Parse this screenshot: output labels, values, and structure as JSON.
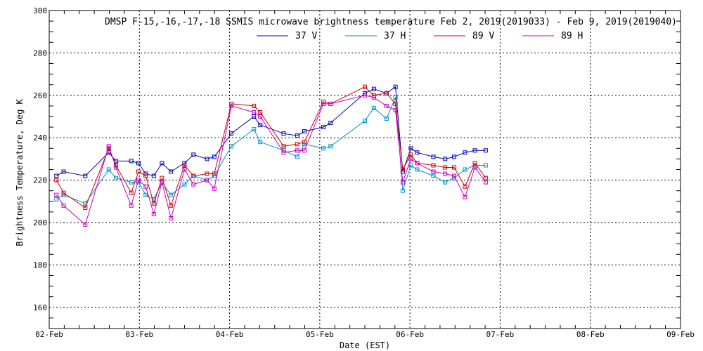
{
  "chart_data": {
    "type": "line",
    "title": "DMSP F-15,-16,-17,-18 SSMIS microwave brightness temperature Feb  2, 2019(2019033) - Feb  9, 2019(2019040)",
    "xlabel": "Date (EST)",
    "ylabel": "Brightness Temperature, Deg K",
    "xlim": [
      0,
      7
    ],
    "ylim": [
      150,
      300
    ],
    "x_ticks": [
      0,
      1,
      2,
      3,
      4,
      5,
      6,
      7
    ],
    "x_tick_labels": [
      "02-Feb",
      "03-Feb",
      "04-Feb",
      "05-Feb",
      "06-Feb",
      "07-Feb",
      "08-Feb",
      "09-Feb"
    ],
    "y_ticks": [
      160,
      180,
      200,
      220,
      240,
      260,
      280,
      300
    ],
    "grid": true,
    "legend": "top-center",
    "series": [
      {
        "name": "37 V",
        "color": "#0000b4",
        "x": [
          0.08,
          0.16,
          0.4,
          0.66,
          0.74,
          0.91,
          0.99,
          1.07,
          1.16,
          1.25,
          1.35,
          1.5,
          1.6,
          1.75,
          1.83,
          2.02,
          2.27,
          2.34,
          2.6,
          2.75,
          2.83,
          3.04,
          3.12,
          3.5,
          3.6,
          3.74,
          3.84,
          3.92,
          4.01,
          4.08,
          4.26,
          4.39,
          4.49,
          4.61,
          4.72,
          4.84
        ],
        "y": [
          222,
          224,
          222,
          233,
          229,
          229,
          228,
          223,
          222,
          228,
          224,
          228,
          232,
          230,
          231,
          242,
          250,
          246,
          242,
          241,
          243,
          245,
          247,
          261,
          263,
          261,
          264,
          224,
          235,
          233,
          231,
          230,
          231,
          233,
          234,
          234
        ]
      },
      {
        "name": "37 H",
        "color": "#0090c8",
        "x": [
          0.08,
          0.16,
          0.4,
          0.66,
          0.74,
          0.91,
          0.99,
          1.07,
          1.16,
          1.25,
          1.35,
          1.5,
          1.6,
          1.75,
          1.83,
          2.02,
          2.27,
          2.34,
          2.6,
          2.75,
          2.83,
          3.04,
          3.12,
          3.5,
          3.6,
          3.74,
          3.84,
          3.92,
          4.01,
          4.08,
          4.26,
          4.39,
          4.49,
          4.61,
          4.72,
          4.84
        ],
        "y": [
          211,
          213,
          209,
          225,
          221,
          219,
          219,
          213,
          211,
          219,
          213,
          218,
          222,
          220,
          222,
          236,
          244,
          238,
          234,
          231,
          237,
          235,
          236,
          248,
          254,
          249,
          259,
          215,
          227,
          225,
          222,
          219,
          221,
          225,
          227,
          227
        ]
      },
      {
        "name": "89 V",
        "color": "#d20000",
        "x": [
          0.08,
          0.16,
          0.4,
          0.66,
          0.74,
          0.91,
          0.99,
          1.07,
          1.16,
          1.25,
          1.35,
          1.5,
          1.6,
          1.75,
          1.83,
          2.02,
          2.27,
          2.34,
          2.6,
          2.75,
          2.83,
          3.04,
          3.12,
          3.5,
          3.6,
          3.74,
          3.84,
          3.92,
          4.01,
          4.08,
          4.26,
          4.39,
          4.49,
          4.61,
          4.72,
          4.84
        ],
        "y": [
          220,
          214,
          207,
          235,
          227,
          214,
          224,
          222,
          209,
          221,
          208,
          227,
          222,
          223,
          223,
          256,
          255,
          252,
          236,
          237,
          238,
          257,
          256,
          264,
          260,
          261,
          256,
          225,
          232,
          228,
          227,
          226,
          226,
          217,
          228,
          221
        ]
      },
      {
        "name": "89 H",
        "color": "#c800c8",
        "x": [
          0.08,
          0.16,
          0.4,
          0.66,
          0.74,
          0.91,
          0.99,
          1.07,
          1.16,
          1.25,
          1.35,
          1.5,
          1.6,
          1.75,
          1.83,
          2.02,
          2.27,
          2.34,
          2.6,
          2.75,
          2.83,
          3.04,
          3.12,
          3.5,
          3.6,
          3.74,
          3.84,
          3.92,
          4.01,
          4.08,
          4.26,
          4.39,
          4.49,
          4.61,
          4.72,
          4.84
        ],
        "y": [
          213,
          208,
          199,
          236,
          226,
          208,
          220,
          217,
          204,
          219,
          202,
          225,
          218,
          220,
          216,
          255,
          252,
          250,
          233,
          234,
          234,
          256,
          256,
          260,
          259,
          255,
          253,
          219,
          230,
          228,
          224,
          223,
          222,
          212,
          226,
          219
        ]
      }
    ]
  }
}
